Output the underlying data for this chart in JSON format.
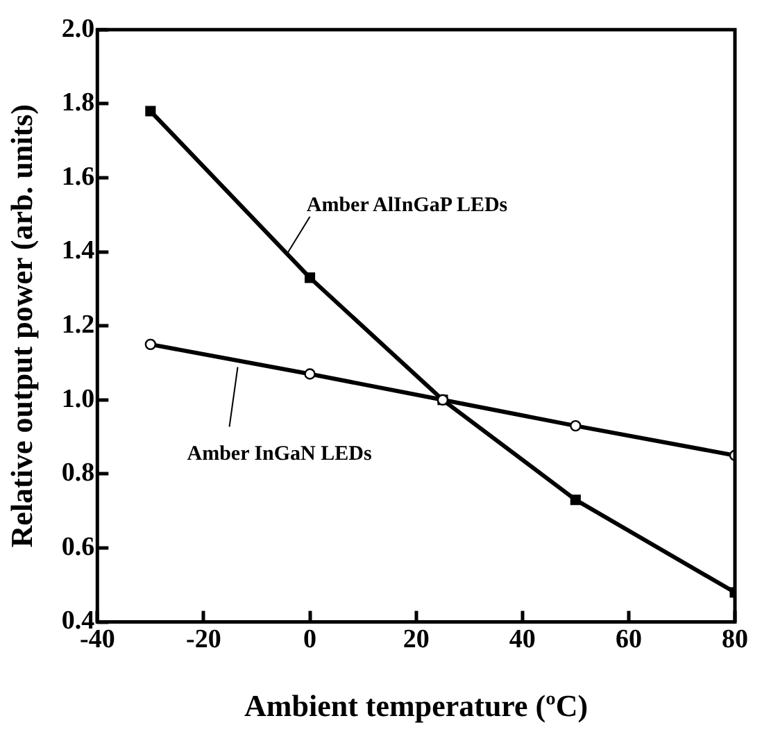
{
  "chart_data": {
    "type": "line",
    "xlabel": "Ambient temperature (ºC)",
    "ylabel": "Relative output power (arb. units)",
    "x": [
      -30,
      0,
      25,
      50,
      80
    ],
    "series": [
      {
        "name": "Amber AlInGaP LEDs",
        "color": "#000000",
        "marker": "square",
        "values": [
          1.78,
          1.33,
          1.0,
          0.73,
          0.48
        ]
      },
      {
        "name": "Amber InGaN LEDs",
        "color": "#000000",
        "marker": "circle",
        "values": [
          1.15,
          1.07,
          1.0,
          0.93,
          0.85
        ]
      }
    ],
    "xlim": [
      -40,
      80
    ],
    "xticks": [
      -40,
      -20,
      0,
      20,
      40,
      60,
      80
    ],
    "ylim": [
      0.4,
      2.0
    ],
    "yticks": [
      0.4,
      0.6,
      0.8,
      {
        "value": 1.0,
        "label": "1.0"
      },
      1.2,
      1.4,
      1.6,
      1.8,
      {
        "value": 2.0,
        "label": "2.0"
      }
    ],
    "grid": false,
    "legend": false,
    "line_style": "solid"
  }
}
